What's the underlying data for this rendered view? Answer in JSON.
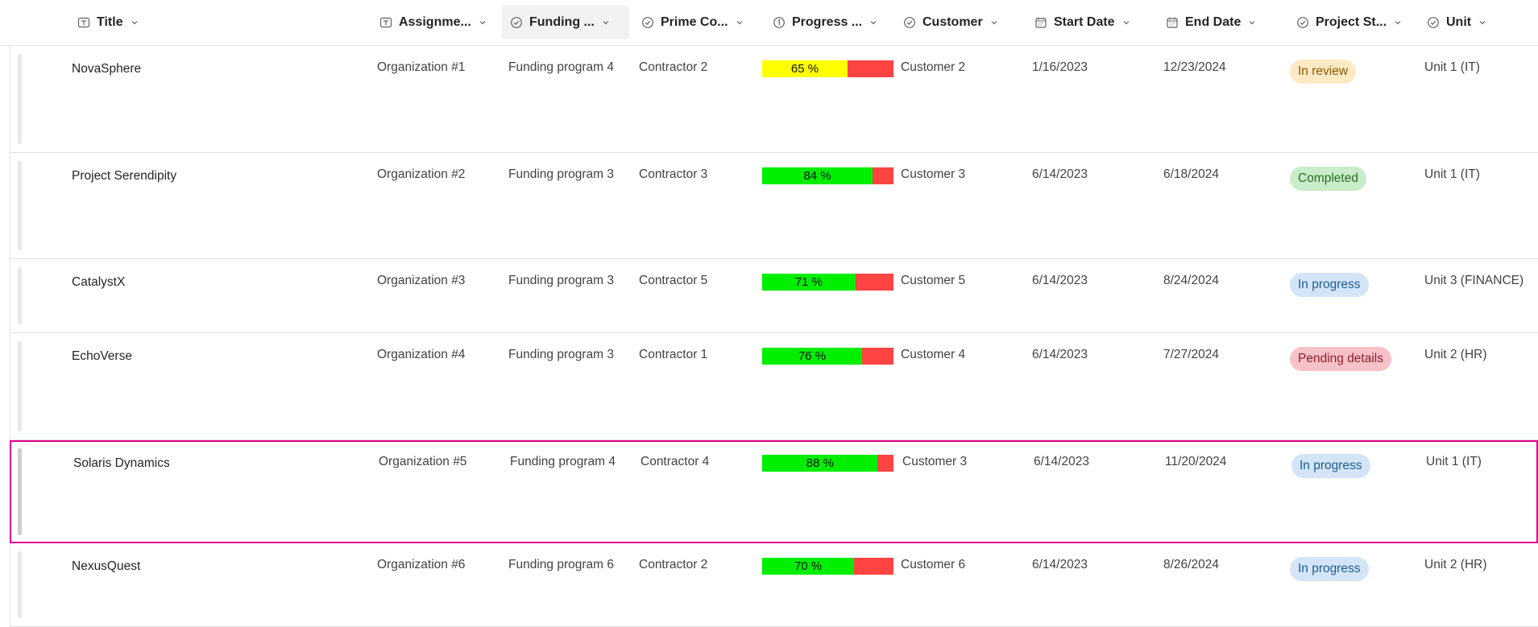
{
  "columns": [
    {
      "label": "Title",
      "icon": "text-field-icon"
    },
    {
      "label": "Assignme...",
      "icon": "text-field-icon"
    },
    {
      "label": "Funding ...",
      "icon": "choice-check-icon"
    },
    {
      "label": "Prime Co...",
      "icon": "choice-check-icon"
    },
    {
      "label": "Progress ...",
      "icon": "number-icon"
    },
    {
      "label": "Customer",
      "icon": "choice-check-icon"
    },
    {
      "label": "Start Date",
      "icon": "calendar-icon"
    },
    {
      "label": "End Date",
      "icon": "calendar-icon"
    },
    {
      "label": "Project St...",
      "icon": "choice-check-icon"
    },
    {
      "label": "Unit",
      "icon": "choice-check-icon"
    }
  ],
  "rows": [
    {
      "title": "NovaSphere",
      "assignment": "Organization #1",
      "funding": "Funding program 4",
      "contractor": "Contractor 2",
      "progress_value": 65,
      "progress_label": "65 %",
      "customer": "Customer 2",
      "start": "1/16/2023",
      "end": "12/23/2024",
      "status": "In review",
      "unit": "Unit 1 (IT)"
    },
    {
      "title": "Project Serendipity",
      "assignment": "Organization #2",
      "funding": "Funding program 3",
      "contractor": "Contractor 3",
      "progress_value": 84,
      "progress_label": "84 %",
      "customer": "Customer 3",
      "start": "6/14/2023",
      "end": "6/18/2024",
      "status": "Completed",
      "unit": "Unit 1 (IT)"
    },
    {
      "title": "CatalystX",
      "assignment": "Organization #3",
      "funding": "Funding program 3",
      "contractor": "Contractor 5",
      "progress_value": 71,
      "progress_label": "71 %",
      "customer": "Customer 5",
      "start": "6/14/2023",
      "end": "8/24/2024",
      "status": "In progress",
      "unit": "Unit 3 (FINANCE)"
    },
    {
      "title": "EchoVerse",
      "assignment": "Organization #4",
      "funding": "Funding program 3",
      "contractor": "Contractor 1",
      "progress_value": 76,
      "progress_label": "76 %",
      "customer": "Customer 4",
      "start": "6/14/2023",
      "end": "7/27/2024",
      "status": "Pending details",
      "unit": "Unit 2 (HR)"
    },
    {
      "title": "Solaris Dynamics",
      "assignment": "Organization #5",
      "funding": "Funding program 4",
      "contractor": "Contractor 4",
      "progress_value": 88,
      "progress_label": "88 %",
      "customer": "Customer 3",
      "start": "6/14/2023",
      "end": "11/20/2024",
      "status": "In progress",
      "unit": "Unit 1 (IT)"
    },
    {
      "title": "NexusQuest",
      "assignment": "Organization #6",
      "funding": "Funding program 6",
      "contractor": "Contractor 2",
      "progress_value": 70,
      "progress_label": "70 %",
      "customer": "Customer 6",
      "start": "6/14/2023",
      "end": "8/26/2024",
      "status": "In progress",
      "unit": "Unit 2 (HR)"
    }
  ],
  "progress_colors": {
    "low": "#ffff00",
    "high": "#00ee00",
    "remaining": "#ff4444"
  },
  "status_colors": {
    "In review": {
      "bg": "#fde9c4",
      "fg": "#8a5a00"
    },
    "Completed": {
      "bg": "#c9ecc9",
      "fg": "#2c6e2c"
    },
    "In progress": {
      "bg": "#d3e5f7",
      "fg": "#1f5c94"
    },
    "Pending details": {
      "bg": "#f7c1c8",
      "fg": "#8c1d2c"
    }
  },
  "selected_row_color": "#e3008c"
}
